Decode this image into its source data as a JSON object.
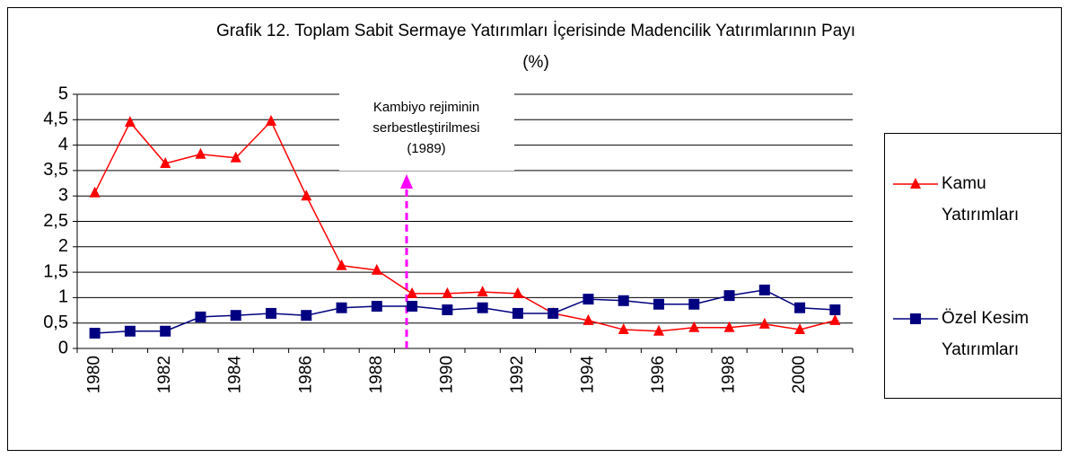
{
  "chart_data": {
    "type": "line",
    "title": "Grafik 12. Toplam Sabit Sermaye Yatırımları İçerisinde Madencilik Yatırımlarının Payı",
    "subtitle": "(%)",
    "annotation": [
      "Kambiyo rejiminin",
      "serbestleştirilmesi",
      "(1989)"
    ],
    "categories": [
      "1980",
      null,
      "1982",
      null,
      "1984",
      null,
      "1986",
      null,
      "1988",
      null,
      "1990",
      null,
      "1992",
      null,
      "1994",
      null,
      "1996",
      null,
      "1998",
      null,
      "2000",
      null
    ],
    "series": [
      {
        "name": "Kamu Yatırımları",
        "color": "#ff0000",
        "marker": "triangle",
        "values": [
          3.06,
          4.45,
          3.64,
          3.82,
          3.75,
          4.47,
          3.0,
          1.63,
          1.54,
          1.08,
          1.08,
          1.11,
          1.08,
          0.69,
          0.55,
          0.37,
          0.34,
          0.41,
          0.41,
          0.48,
          0.37,
          0.55
        ]
      },
      {
        "name": "Özel Kesim Yatırımları",
        "color": "#000080",
        "marker": "square",
        "values": [
          0.3,
          0.34,
          0.34,
          0.62,
          0.65,
          0.69,
          0.65,
          0.8,
          0.83,
          0.83,
          0.76,
          0.8,
          0.69,
          0.69,
          0.97,
          0.94,
          0.87,
          0.87,
          1.04,
          1.15,
          0.8,
          0.76
        ]
      }
    ],
    "ylim": [
      0,
      5
    ],
    "yticks": [
      0,
      {
        "value": 0.5,
        "label": "0,5"
      },
      1,
      {
        "value": 1.5,
        "label": "1,5"
      },
      2,
      {
        "value": 2.5,
        "label": "2,5"
      },
      3,
      {
        "value": 3.5,
        "label": "3,5"
      },
      4,
      {
        "value": 4.5,
        "label": "4,5"
      },
      5
    ],
    "grid": true,
    "legend": "right"
  }
}
